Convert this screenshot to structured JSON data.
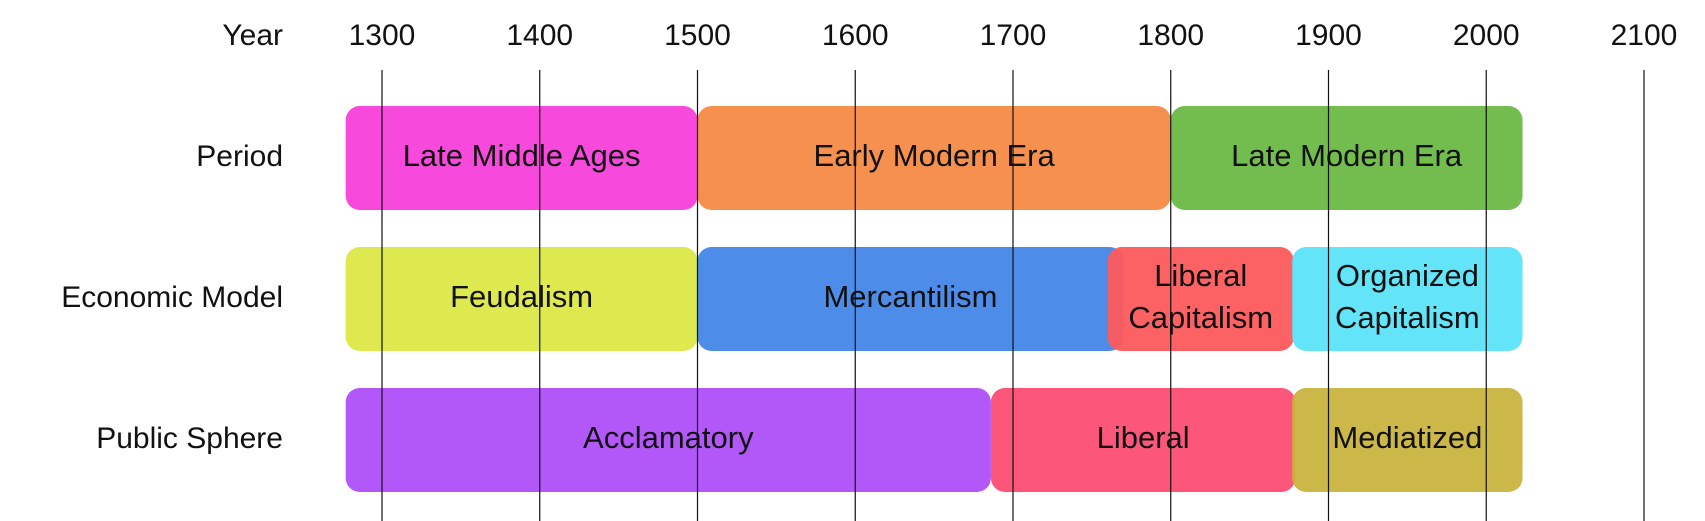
{
  "header_label": "Year",
  "years": [
    1300,
    1400,
    1500,
    1600,
    1700,
    1800,
    1900,
    2000,
    2100
  ],
  "rows": [
    {
      "label": "Period",
      "segments": [
        {
          "label": [
            "Late Middle Ages"
          ],
          "start": 1277,
          "end": 1500,
          "color": "#f73fd9"
        },
        {
          "label": [
            "Early Modern Era"
          ],
          "start": 1500,
          "end": 1800,
          "color": "#f68a44"
        },
        {
          "label": [
            "Late Modern Era"
          ],
          "start": 1800,
          "end": 2023,
          "color": "#6ab944"
        }
      ]
    },
    {
      "label": "Economic Model",
      "segments": [
        {
          "label": [
            "Feudalism"
          ],
          "start": 1277,
          "end": 1500,
          "color": "#dce846"
        },
        {
          "label": [
            "Mercantilism"
          ],
          "start": 1500,
          "end": 1770,
          "color": "#4486e8"
        },
        {
          "label": [
            "Liberal",
            "Capitalism"
          ],
          "start": 1760,
          "end": 1878,
          "color": "#fc5a5c"
        },
        {
          "label": [
            "Organized",
            "Capitalism"
          ],
          "start": 1877,
          "end": 2023,
          "color": "#5ce3f9"
        }
      ]
    },
    {
      "label": "Public Sphere",
      "segments": [
        {
          "label": [
            "Acclamatory"
          ],
          "start": 1277,
          "end": 1686,
          "color": "#ae4ff9"
        },
        {
          "label": [
            "Liberal"
          ],
          "start": 1686,
          "end": 1879,
          "color": "#fc4e74"
        },
        {
          "label": [
            "Mediatized"
          ],
          "start": 1877,
          "end": 2023,
          "color": "#c9b43f"
        }
      ]
    }
  ]
}
